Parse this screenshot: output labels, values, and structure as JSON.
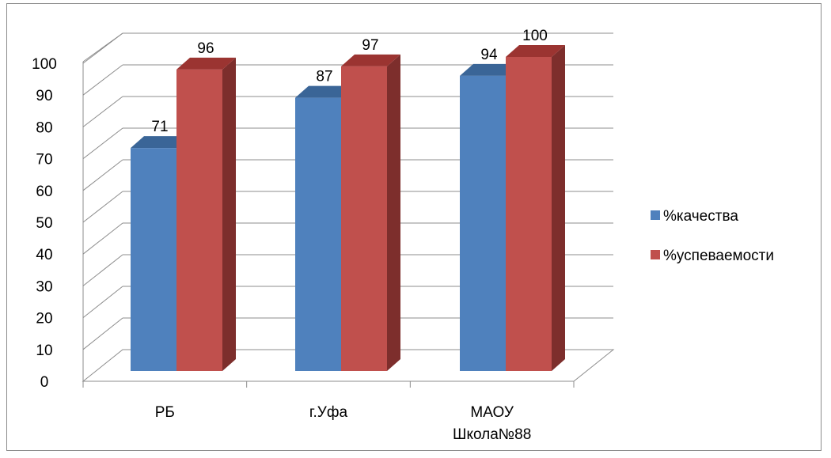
{
  "chart_data": {
    "type": "bar",
    "style": "3d-clustered-column",
    "categories": [
      [
        "РБ"
      ],
      [
        "г.Уфа"
      ],
      [
        "МАОУ",
        "Школа№88"
      ]
    ],
    "series": [
      {
        "name": "%качества",
        "values": [
          71,
          87,
          94
        ],
        "color": "#4f81bd",
        "top_color": "#3a6597",
        "side_color": "#2f5580"
      },
      {
        "name": "%успеваемости",
        "values": [
          96,
          97,
          100
        ],
        "color": "#c0504d",
        "top_color": "#9b3431",
        "side_color": "#7d2e2c"
      }
    ],
    "ylim": [
      0,
      100
    ],
    "yticks": [
      "0",
      "10",
      "20",
      "30",
      "40",
      "50",
      "60",
      "70",
      "80",
      "90",
      "100"
    ],
    "grid": true,
    "legend": "right"
  }
}
